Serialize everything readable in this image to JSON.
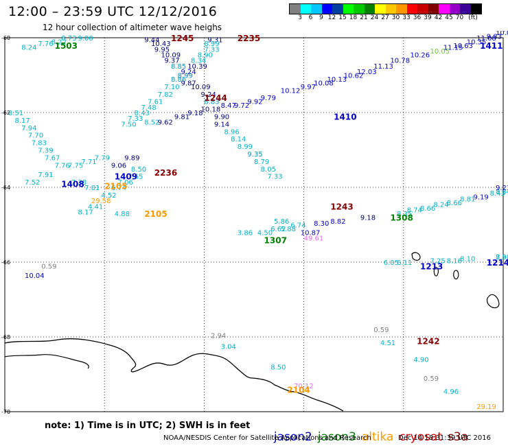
{
  "header": {
    "title": "12:00 – 23:59 UTC 12/12/2016",
    "subtitle": "12 hour collection of altimeter wave heighs"
  },
  "colorbar": {
    "colors": [
      "#808080",
      "#00ffff",
      "#00c8ff",
      "#0000ff",
      "#003ea0",
      "#00ff00",
      "#00c800",
      "#008000",
      "#ffff00",
      "#ffc800",
      "#ff9600",
      "#ff0000",
      "#c80000",
      "#800000",
      "#ff00ff",
      "#9600c8",
      "#3c0096",
      "#000000"
    ],
    "labels": [
      "3",
      "6",
      "9",
      "12",
      "15",
      "18",
      "21",
      "24",
      "27",
      "30",
      "33",
      "36",
      "39",
      "42",
      "45",
      "70",
      "(ft)"
    ]
  },
  "colors": {
    "jason2": "#0000cc",
    "jason3": "#008000",
    "altika": "#ff9900",
    "cryosat": "#cc0000",
    "s3a": "#880000",
    "swh_light": "#00b4cc",
    "swh_mid": "#0096c8",
    "swh_dark": "#000080",
    "swh_magenta": "#ee66ee",
    "swh_green": "#66cc33",
    "swh_gray": "#808080",
    "coast": "#000000"
  },
  "map": {
    "lon_ticks": [
      "150",
      "153",
      "156",
      "159",
      "162",
      "165"
    ],
    "lat_ticks": [
      "-60",
      "-62",
      "-64",
      "-66",
      "-68",
      "-70"
    ],
    "time_labels": [
      {
        "text": "1503",
        "lon": 151.5,
        "lat": -60.2,
        "color": "#008000"
      },
      {
        "text": "1245",
        "lon": 155.0,
        "lat": -60.0,
        "color": "#880000"
      },
      {
        "text": "2235",
        "lon": 157.0,
        "lat": -60.0,
        "color": "#880000"
      },
      {
        "text": "1244",
        "lon": 156.0,
        "lat": -61.6,
        "color": "#880000"
      },
      {
        "text": "1410",
        "lon": 159.9,
        "lat": -62.1,
        "color": "#0000cc"
      },
      {
        "text": "1411",
        "lon": 164.3,
        "lat": -60.2,
        "color": "#0000cc"
      },
      {
        "text": "1409",
        "lon": 153.3,
        "lat": -63.7,
        "color": "#0000cc"
      },
      {
        "text": "1408",
        "lon": 151.7,
        "lat": -63.9,
        "color": "#0000cc"
      },
      {
        "text": "2236",
        "lon": 154.5,
        "lat": -63.6,
        "color": "#880000"
      },
      {
        "text": "2105",
        "lon": 153.0,
        "lat": -63.95,
        "color": "#ff9900"
      },
      {
        "text": "2105",
        "lon": 154.2,
        "lat": -64.7,
        "color": "#ff9900"
      },
      {
        "text": "1243",
        "lon": 159.8,
        "lat": -64.5,
        "color": "#880000"
      },
      {
        "text": "1308",
        "lon": 161.6,
        "lat": -64.8,
        "color": "#008000"
      },
      {
        "text": "1307",
        "lon": 157.8,
        "lat": -65.4,
        "color": "#008000"
      },
      {
        "text": "1213",
        "lon": 162.5,
        "lat": -66.1,
        "color": "#0000cc"
      },
      {
        "text": "1214",
        "lon": 164.5,
        "lat": -66.0,
        "color": "#0000cc"
      },
      {
        "text": "1242",
        "lon": 162.4,
        "lat": -68.1,
        "color": "#880000"
      },
      {
        "text": "2104",
        "lon": 158.5,
        "lat": -69.4,
        "color": "#ff9900"
      }
    ],
    "swh_labels": [
      {
        "text": "7.76",
        "lon": 151.0,
        "lat": -60.15,
        "color": "#00b4cc"
      },
      {
        "text": "8.22",
        "lon": 151.4,
        "lat": -60.1,
        "color": "#00b4cc"
      },
      {
        "text": "8.73",
        "lon": 151.7,
        "lat": -60.0,
        "color": "#00b4cc"
      },
      {
        "text": "9.00",
        "lon": 152.2,
        "lat": -60.0,
        "color": "#00b4cc"
      },
      {
        "text": "8.24",
        "lon": 150.5,
        "lat": -60.25,
        "color": "#00b4cc"
      },
      {
        "text": "9.44",
        "lon": 154.2,
        "lat": -60.05,
        "color": "#000080"
      },
      {
        "text": "10.43",
        "lon": 154.4,
        "lat": -60.15,
        "color": "#000080"
      },
      {
        "text": "9.95",
        "lon": 154.5,
        "lat": -60.3,
        "color": "#000080"
      },
      {
        "text": "10.09",
        "lon": 154.7,
        "lat": -60.45,
        "color": "#000080"
      },
      {
        "text": "9.37",
        "lon": 154.8,
        "lat": -60.6,
        "color": "#000080"
      },
      {
        "text": "8.85",
        "lon": 155.0,
        "lat": -60.75,
        "color": "#0096c8"
      },
      {
        "text": "9.31",
        "lon": 156.1,
        "lat": -60.05,
        "color": "#000080"
      },
      {
        "text": "8.99",
        "lon": 156.0,
        "lat": -60.15,
        "color": "#00b4cc"
      },
      {
        "text": "7.33",
        "lon": 156.0,
        "lat": -60.3,
        "color": "#00b4cc"
      },
      {
        "text": "8.90",
        "lon": 155.8,
        "lat": -60.45,
        "color": "#00b4cc"
      },
      {
        "text": "8.34",
        "lon": 155.6,
        "lat": -60.6,
        "color": "#00b4cc"
      },
      {
        "text": "10.39",
        "lon": 155.5,
        "lat": -60.75,
        "color": "#000080"
      },
      {
        "text": "9.24",
        "lon": 155.3,
        "lat": -60.9,
        "color": "#0000cc"
      },
      {
        "text": "8.99",
        "lon": 155.2,
        "lat": -61.0,
        "color": "#0096c8"
      },
      {
        "text": "8.86",
        "lon": 155.0,
        "lat": -61.1,
        "color": "#0096c8"
      },
      {
        "text": "9.87",
        "lon": 155.3,
        "lat": -61.2,
        "color": "#000080"
      },
      {
        "text": "7.10",
        "lon": 154.8,
        "lat": -61.3,
        "color": "#00b4cc"
      },
      {
        "text": "10.09",
        "lon": 155.6,
        "lat": -61.3,
        "color": "#000080"
      },
      {
        "text": "7.82",
        "lon": 154.6,
        "lat": -61.5,
        "color": "#00b4cc"
      },
      {
        "text": "9.24",
        "lon": 155.9,
        "lat": -61.5,
        "color": "#000080"
      },
      {
        "text": "7.61",
        "lon": 154.3,
        "lat": -61.7,
        "color": "#00b4cc"
      },
      {
        "text": "8.83",
        "lon": 156.0,
        "lat": -61.7,
        "color": "#0096c8"
      },
      {
        "text": "7.48",
        "lon": 154.1,
        "lat": -61.85,
        "color": "#00b4cc"
      },
      {
        "text": "8.43",
        "lon": 153.9,
        "lat": -62.0,
        "color": "#00b4cc"
      },
      {
        "text": "7.33",
        "lon": 153.7,
        "lat": -62.15,
        "color": "#00b4cc"
      },
      {
        "text": "8.52",
        "lon": 154.2,
        "lat": -62.25,
        "color": "#00b4cc"
      },
      {
        "text": "7.50",
        "lon": 153.5,
        "lat": -62.3,
        "color": "#00b4cc"
      },
      {
        "text": "9.62",
        "lon": 154.6,
        "lat": -62.25,
        "color": "#000080"
      },
      {
        "text": "9.81",
        "lon": 155.1,
        "lat": -62.1,
        "color": "#000080"
      },
      {
        "text": "9.18",
        "lon": 155.5,
        "lat": -62.0,
        "color": "#000080"
      },
      {
        "text": "10.18",
        "lon": 155.9,
        "lat": -61.9,
        "color": "#000080"
      },
      {
        "text": "9.90",
        "lon": 156.3,
        "lat": -62.1,
        "color": "#000080"
      },
      {
        "text": "9.14",
        "lon": 156.3,
        "lat": -62.3,
        "color": "#000080"
      },
      {
        "text": "8.47",
        "lon": 156.5,
        "lat": -61.8,
        "color": "#0000cc"
      },
      {
        "text": "9.72",
        "lon": 156.9,
        "lat": -61.8,
        "color": "#0000cc"
      },
      {
        "text": "9.92",
        "lon": 157.3,
        "lat": -61.7,
        "color": "#0000cc"
      },
      {
        "text": "9.79",
        "lon": 157.7,
        "lat": -61.6,
        "color": "#0000cc"
      },
      {
        "text": "10.12",
        "lon": 158.3,
        "lat": -61.4,
        "color": "#0000cc"
      },
      {
        "text": "9.97",
        "lon": 158.9,
        "lat": -61.3,
        "color": "#0000cc"
      },
      {
        "text": "10.08",
        "lon": 159.3,
        "lat": -61.2,
        "color": "#0000cc"
      },
      {
        "text": "10.13",
        "lon": 159.7,
        "lat": -61.1,
        "color": "#0000cc"
      },
      {
        "text": "10.62",
        "lon": 160.2,
        "lat": -61.0,
        "color": "#0000cc"
      },
      {
        "text": "12.03",
        "lon": 160.6,
        "lat": -60.9,
        "color": "#0000cc"
      },
      {
        "text": "11.13",
        "lon": 161.1,
        "lat": -60.75,
        "color": "#0000cc"
      },
      {
        "text": "10.78",
        "lon": 161.6,
        "lat": -60.6,
        "color": "#0000cc"
      },
      {
        "text": "10.26",
        "lon": 162.2,
        "lat": -60.45,
        "color": "#0000cc"
      },
      {
        "text": "10.05",
        "lon": 162.8,
        "lat": -60.35,
        "color": "#66cc33"
      },
      {
        "text": "11.15",
        "lon": 163.2,
        "lat": -60.25,
        "color": "#0000cc"
      },
      {
        "text": "10.63",
        "lon": 163.5,
        "lat": -60.2,
        "color": "#0000cc"
      },
      {
        "text": "10.35",
        "lon": 163.9,
        "lat": -60.1,
        "color": "#0000cc"
      },
      {
        "text": "11.08",
        "lon": 164.2,
        "lat": -60.0,
        "color": "#0000cc"
      },
      {
        "text": "9.83",
        "lon": 164.5,
        "lat": -59.95,
        "color": "#0000cc"
      },
      {
        "text": "10.04",
        "lon": 164.8,
        "lat": -59.85,
        "color": "#0000cc"
      },
      {
        "text": "9.63",
        "lon": 165.1,
        "lat": -59.75,
        "color": "#0000cc"
      },
      {
        "text": "8.51",
        "lon": 150.1,
        "lat": -62.0,
        "color": "#00b4cc"
      },
      {
        "text": "8.17",
        "lon": 150.3,
        "lat": -62.2,
        "color": "#00b4cc"
      },
      {
        "text": "7.94",
        "lon": 150.5,
        "lat": -62.4,
        "color": "#00b4cc"
      },
      {
        "text": "7.70",
        "lon": 150.7,
        "lat": -62.6,
        "color": "#00b4cc"
      },
      {
        "text": "7.83",
        "lon": 150.8,
        "lat": -62.8,
        "color": "#00b4cc"
      },
      {
        "text": "7.39",
        "lon": 151.0,
        "lat": -63.0,
        "color": "#00b4cc"
      },
      {
        "text": "7.67",
        "lon": 151.2,
        "lat": -63.2,
        "color": "#00b4cc"
      },
      {
        "text": "7.71",
        "lon": 152.3,
        "lat": -63.3,
        "color": "#00b4cc"
      },
      {
        "text": "7.79",
        "lon": 152.7,
        "lat": -63.2,
        "color": "#00b4cc"
      },
      {
        "text": "7.76",
        "lon": 151.5,
        "lat": -63.4,
        "color": "#00b4cc"
      },
      {
        "text": "7.75",
        "lon": 151.9,
        "lat": -63.4,
        "color": "#00b4cc"
      },
      {
        "text": "7.91",
        "lon": 151.0,
        "lat": -63.65,
        "color": "#00b4cc"
      },
      {
        "text": "7.52",
        "lon": 150.6,
        "lat": -63.85,
        "color": "#00b4cc"
      },
      {
        "text": "7.38",
        "lon": 152.0,
        "lat": -63.85,
        "color": "#00b4cc"
      },
      {
        "text": "9.06",
        "lon": 153.2,
        "lat": -63.4,
        "color": "#000080"
      },
      {
        "text": "9.89",
        "lon": 153.6,
        "lat": -63.2,
        "color": "#000080"
      },
      {
        "text": "8.50",
        "lon": 153.8,
        "lat": -63.5,
        "color": "#00b4cc"
      },
      {
        "text": "7.65",
        "lon": 153.7,
        "lat": -63.7,
        "color": "#00b4cc"
      },
      {
        "text": "7.06",
        "lon": 153.4,
        "lat": -63.85,
        "color": "#00b4cc"
      },
      {
        "text": "7.01",
        "lon": 152.4,
        "lat": -64.0,
        "color": "#00b4cc"
      },
      {
        "text": "6.74",
        "lon": 153.2,
        "lat": -64.0,
        "color": "#00b4cc"
      },
      {
        "text": "4.52",
        "lon": 152.9,
        "lat": -64.2,
        "color": "#00b4cc"
      },
      {
        "text": "29.58",
        "lon": 152.6,
        "lat": -64.35,
        "color": "#ff9900"
      },
      {
        "text": "4.41",
        "lon": 152.5,
        "lat": -64.5,
        "color": "#00b4cc"
      },
      {
        "text": "8.17",
        "lon": 152.2,
        "lat": -64.65,
        "color": "#00b4cc"
      },
      {
        "text": "4.88",
        "lon": 153.3,
        "lat": -64.7,
        "color": "#00b4cc"
      },
      {
        "text": "8.96",
        "lon": 156.6,
        "lat": -62.5,
        "color": "#00b4cc"
      },
      {
        "text": "8.14",
        "lon": 156.8,
        "lat": -62.7,
        "color": "#00b4cc"
      },
      {
        "text": "8.99",
        "lon": 157.0,
        "lat": -62.9,
        "color": "#00b4cc"
      },
      {
        "text": "9.35",
        "lon": 157.3,
        "lat": -63.1,
        "color": "#0096c8"
      },
      {
        "text": "8.79",
        "lon": 157.5,
        "lat": -63.3,
        "color": "#00b4cc"
      },
      {
        "text": "8.05",
        "lon": 157.7,
        "lat": -63.5,
        "color": "#00b4cc"
      },
      {
        "text": "7.33",
        "lon": 157.9,
        "lat": -63.7,
        "color": "#00b4cc"
      },
      {
        "text": "5.86",
        "lon": 158.1,
        "lat": -64.9,
        "color": "#00b4cc"
      },
      {
        "text": "3.86",
        "lon": 157.0,
        "lat": -65.2,
        "color": "#00b4cc"
      },
      {
        "text": "4.50",
        "lon": 157.6,
        "lat": -65.2,
        "color": "#00b4cc"
      },
      {
        "text": "6.62",
        "lon": 158.0,
        "lat": -65.1,
        "color": "#00b4cc"
      },
      {
        "text": "5.88",
        "lon": 158.3,
        "lat": -65.1,
        "color": "#00b4cc"
      },
      {
        "text": "6.74",
        "lon": 158.6,
        "lat": -65.0,
        "color": "#00b4cc"
      },
      {
        "text": "10.87",
        "lon": 158.9,
        "lat": -65.2,
        "color": "#0000cc"
      },
      {
        "text": "49.61",
        "lon": 159.0,
        "lat": -65.35,
        "color": "#ee66ee"
      },
      {
        "text": "8.30",
        "lon": 159.3,
        "lat": -64.95,
        "color": "#0000cc"
      },
      {
        "text": "8.82",
        "lon": 159.8,
        "lat": -64.9,
        "color": "#0000cc"
      },
      {
        "text": "9.18",
        "lon": 160.7,
        "lat": -64.8,
        "color": "#000080"
      },
      {
        "text": "8.35",
        "lon": 161.8,
        "lat": -64.7,
        "color": "#00b4cc"
      },
      {
        "text": "8.74",
        "lon": 162.1,
        "lat": -64.6,
        "color": "#00b4cc"
      },
      {
        "text": "8.66",
        "lon": 162.5,
        "lat": -64.55,
        "color": "#00b4cc"
      },
      {
        "text": "8.24",
        "lon": 162.9,
        "lat": -64.45,
        "color": "#00b4cc"
      },
      {
        "text": "8.66",
        "lon": 163.3,
        "lat": -64.4,
        "color": "#00b4cc"
      },
      {
        "text": "8.81",
        "lon": 163.7,
        "lat": -64.3,
        "color": "#00b4cc"
      },
      {
        "text": "9.19",
        "lon": 164.1,
        "lat": -64.25,
        "color": "#0000cc"
      },
      {
        "text": "8.43",
        "lon": 164.6,
        "lat": -64.15,
        "color": "#00b4cc"
      },
      {
        "text": "8.34",
        "lon": 164.9,
        "lat": -64.1,
        "color": "#00b4cc"
      },
      {
        "text": "9.23",
        "lon": 165.3,
        "lat": -64.0,
        "color": "#0000cc"
      },
      {
        "text": "6.05",
        "lon": 161.4,
        "lat": -66.0,
        "color": "#00b4cc"
      },
      {
        "text": "6.11",
        "lon": 161.8,
        "lat": -66.0,
        "color": "#00b4cc"
      },
      {
        "text": "7.25",
        "lon": 162.8,
        "lat": -65.95,
        "color": "#00b4cc"
      },
      {
        "text": "8.16",
        "lon": 163.3,
        "lat": -65.95,
        "color": "#00b4cc"
      },
      {
        "text": "8.10",
        "lon": 163.7,
        "lat": -65.9,
        "color": "#00b4cc"
      },
      {
        "text": "7.90",
        "lon": 165.2,
        "lat": -65.85,
        "color": "#00b4cc"
      },
      {
        "text": "8.31",
        "lon": 165.7,
        "lat": -65.85,
        "color": "#00b4cc"
      },
      {
        "text": "0.59",
        "lon": 151.1,
        "lat": -66.1,
        "color": "#808080"
      },
      {
        "text": "10.04",
        "lon": 150.6,
        "lat": -66.35,
        "color": "#0000cc"
      },
      {
        "text": "2.94",
        "lon": 156.2,
        "lat": -67.95,
        "color": "#808080"
      },
      {
        "text": "3.04",
        "lon": 156.5,
        "lat": -68.25,
        "color": "#00b4cc"
      },
      {
        "text": "0.59",
        "lon": 161.1,
        "lat": -67.8,
        "color": "#808080"
      },
      {
        "text": "4.51",
        "lon": 161.3,
        "lat": -68.15,
        "color": "#00b4cc"
      },
      {
        "text": "4.90",
        "lon": 162.3,
        "lat": -68.6,
        "color": "#00b4cc"
      },
      {
        "text": "8.50",
        "lon": 158.0,
        "lat": -68.8,
        "color": "#00b4cc"
      },
      {
        "text": "70.12",
        "lon": 158.7,
        "lat": -69.3,
        "color": "#ee66ee"
      },
      {
        "text": "0.59",
        "lon": 162.6,
        "lat": -69.1,
        "color": "#808080"
      },
      {
        "text": "4.96",
        "lon": 163.2,
        "lat": -69.45,
        "color": "#00b4cc"
      },
      {
        "text": "29.19",
        "lon": 164.2,
        "lat": -69.85,
        "color": "#ff9900"
      }
    ]
  },
  "footer": {
    "note": "note: 1) Time is in UTC; 2) SWH is in feet",
    "legend": [
      {
        "name": "jason2",
        "color": "#0000cc"
      },
      {
        "name": "jason3",
        "color": "#008000"
      },
      {
        "name": "altika",
        "color": "#ff9900"
      },
      {
        "name": "cryosat",
        "color": "#cc0000"
      },
      {
        "name": "s3a",
        "color": "#880000"
      }
    ],
    "org": "NOAA/NESDIS Center for Satellite Applications and Research",
    "timestamp": "Dec 14 18:31:39 UTC 2016"
  }
}
